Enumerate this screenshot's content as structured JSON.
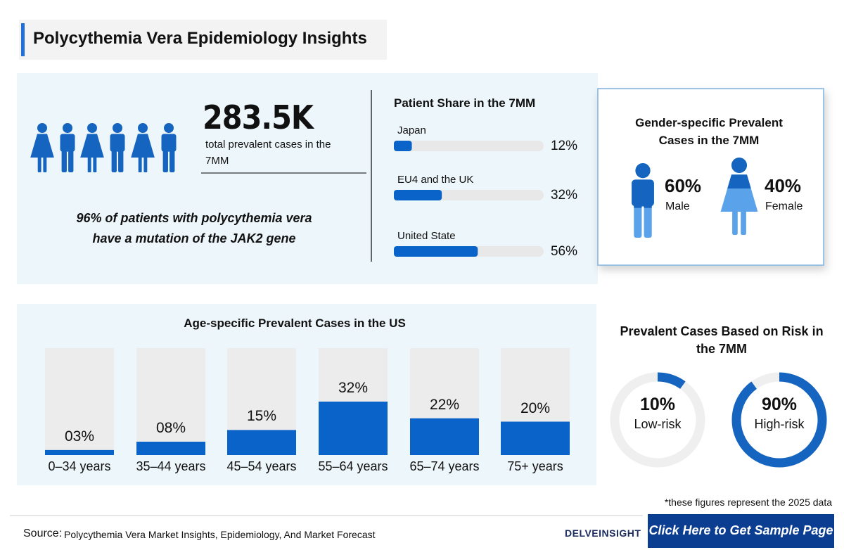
{
  "header": {
    "title": "Polycythemia Vera Epidemiology Insights"
  },
  "overview": {
    "total": "283.5K",
    "total_caption": "total prevalent cases in the 7MM",
    "jak2_note": "96% of patients with polycythemia vera have a mutation of the JAK2 gene"
  },
  "chart_data": [
    {
      "type": "bar",
      "orientation": "horizontal",
      "title": "Patient Share in the 7MM",
      "categories": [
        "Japan",
        "EU4 and the UK",
        "United State"
      ],
      "values": [
        12,
        32,
        56
      ],
      "value_labels": [
        "12%",
        "32%",
        "56%"
      ],
      "color": "#0a63c9"
    },
    {
      "type": "pictograph",
      "title": "Gender-specific Prevalent Cases in the 7MM",
      "categories": [
        "Male",
        "Female"
      ],
      "values": [
        60,
        40
      ],
      "value_labels": [
        "60%",
        "40%"
      ],
      "color": "#1565c0"
    },
    {
      "type": "bar",
      "orientation": "vertical",
      "title": "Age-specific Prevalent Cases in the US",
      "categories": [
        "0–34 years",
        "35–44 years",
        "45–54 years",
        "55–64 years",
        "65–74 years",
        "75+ years"
      ],
      "values": [
        3,
        8,
        15,
        32,
        22,
        20
      ],
      "value_labels": [
        "03%",
        "08%",
        "15%",
        "32%",
        "22%",
        "20%"
      ],
      "ylim": [
        0,
        64
      ],
      "color": "#0a63c9"
    },
    {
      "type": "donut",
      "title": "Prevalent Cases Based on Risk in the 7MM",
      "categories": [
        "Low-risk",
        "High-risk"
      ],
      "values": [
        10,
        90
      ],
      "value_labels": [
        "10%",
        "90%"
      ],
      "color": "#1565c0"
    }
  ],
  "footnote": "*these figures represent the 2025 data",
  "footer": {
    "source_label": "Source:",
    "source": "Polycythemia Vera Market Insights, Epidemiology, And Market Forecast",
    "logo": "DELVEINSIGHT",
    "cta": "Click Here to Get Sample Page"
  }
}
